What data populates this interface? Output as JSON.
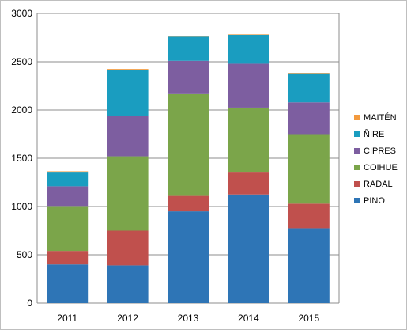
{
  "chart_data": {
    "type": "bar",
    "stacked": true,
    "title": "",
    "xlabel": "",
    "ylabel": "",
    "categories": [
      "2011",
      "2012",
      "2013",
      "2014",
      "2015"
    ],
    "ylim": [
      0,
      3000
    ],
    "yticks": [
      0,
      500,
      1000,
      1500,
      2000,
      2500,
      3000
    ],
    "grid": true,
    "legend_position": "right",
    "series": [
      {
        "name": "PINO",
        "color": "#2e75b6",
        "values": [
          400,
          390,
          950,
          1125,
          775
        ]
      },
      {
        "name": "RADAL",
        "color": "#c0504d",
        "values": [
          140,
          360,
          160,
          235,
          255
        ]
      },
      {
        "name": "COIHUE",
        "color": "#7ba54a",
        "values": [
          465,
          770,
          1055,
          665,
          720
        ]
      },
      {
        "name": "CIPRES",
        "color": "#7d5ea0",
        "values": [
          205,
          420,
          345,
          455,
          330
        ]
      },
      {
        "name": "ÑIRE",
        "color": "#1a9dc0",
        "values": [
          150,
          475,
          250,
          300,
          300
        ]
      },
      {
        "name": "MAITÉN",
        "color": "#f39a3e",
        "values": [
          5,
          10,
          10,
          5,
          5
        ]
      }
    ]
  }
}
